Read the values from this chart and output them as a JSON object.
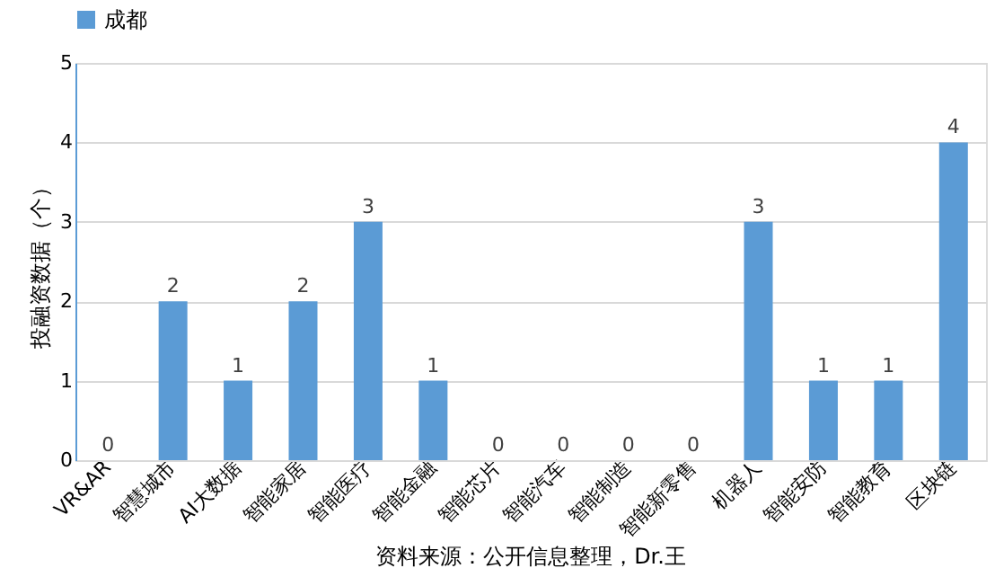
{
  "chart_data": {
    "type": "bar",
    "ylabel": "投融资数据（个）",
    "categories": [
      "VR&AR",
      "智慧城市",
      "AI大数据",
      "智能家居",
      "智能医疗",
      "智能金融",
      "智能芯片",
      "智能汽车",
      "智能制造",
      "智能新零售",
      "机器人",
      "智能安防",
      "智能教育",
      "区块链"
    ],
    "series": [
      {
        "name": "成都",
        "color": "#5b9bd5",
        "values": [
          0,
          2,
          1,
          2,
          3,
          1,
          0,
          0,
          0,
          0,
          3,
          1,
          1,
          4
        ]
      }
    ],
    "ylim": [
      0,
      5
    ],
    "yticks": [
      0,
      1,
      2,
      3,
      4,
      5
    ],
    "grid": "y",
    "legend": "top",
    "data_labels": true,
    "annotations": [
      "资料来源：公开信息整理，Dr.王"
    ]
  }
}
